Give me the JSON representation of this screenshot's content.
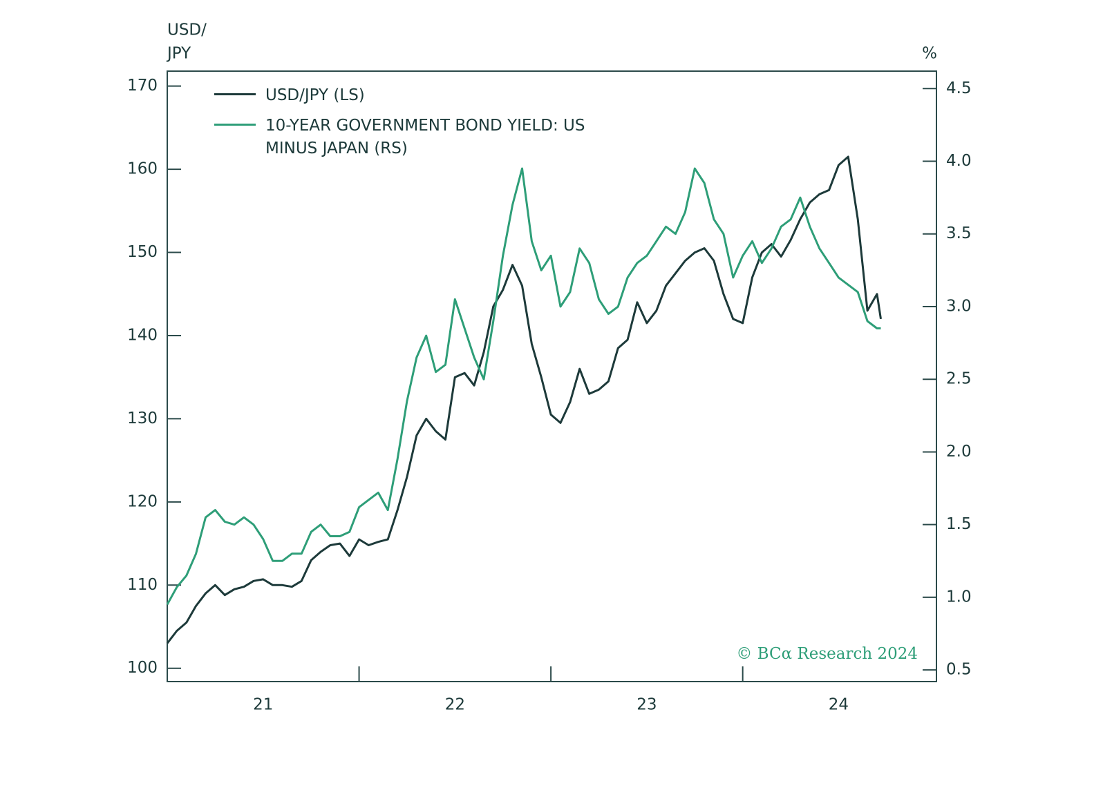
{
  "chart_data": {
    "type": "line",
    "ylabel": [
      "USD/",
      "JPY"
    ],
    "y2label": "%",
    "source": "© BCα Research 2024",
    "x": [
      2021.0,
      2021.05,
      2021.1,
      2021.15,
      2021.2,
      2021.25,
      2021.3,
      2021.35,
      2021.4,
      2021.45,
      2021.5,
      2021.55,
      2021.6,
      2021.65,
      2021.7,
      2021.75,
      2021.8,
      2021.85,
      2021.9,
      2021.95,
      2022.0,
      2022.05,
      2022.1,
      2022.15,
      2022.2,
      2022.25,
      2022.3,
      2022.35,
      2022.4,
      2022.45,
      2022.5,
      2022.55,
      2022.6,
      2022.65,
      2022.7,
      2022.75,
      2022.8,
      2022.85,
      2022.9,
      2022.95,
      2023.0,
      2023.05,
      2023.1,
      2023.15,
      2023.2,
      2023.25,
      2023.3,
      2023.35,
      2023.4,
      2023.45,
      2023.5,
      2023.55,
      2023.6,
      2023.65,
      2023.7,
      2023.75,
      2023.8,
      2023.85,
      2023.9,
      2023.95,
      2024.0,
      2024.05,
      2024.1,
      2024.15,
      2024.2,
      2024.25,
      2024.3,
      2024.35,
      2024.4,
      2024.45,
      2024.5,
      2024.55,
      2024.6,
      2024.65,
      2024.7,
      2024.72
    ],
    "series": [
      {
        "name": "USD/JPY (LS)",
        "color": "#1d3a3a",
        "axis": "y",
        "values": [
          103,
          104.5,
          105.5,
          107.5,
          109,
          110,
          108.8,
          109.5,
          109.8,
          110.5,
          110.7,
          110,
          110,
          109.8,
          110.5,
          113,
          114,
          114.8,
          115,
          113.5,
          115.5,
          114.8,
          115.2,
          115.5,
          119,
          123,
          128,
          130,
          128.5,
          127.5,
          135,
          135.5,
          134,
          138,
          143.5,
          145.5,
          148.5,
          146,
          139,
          135,
          130.5,
          129.5,
          132,
          136,
          133,
          133.5,
          134.5,
          138.5,
          139.5,
          144,
          141.5,
          143,
          146,
          147.5,
          149,
          150,
          150.5,
          149,
          145,
          142,
          141.5,
          147,
          150,
          151,
          149.5,
          151.5,
          154,
          156,
          157,
          157.5,
          160.5,
          161.5,
          154,
          143,
          145,
          142
        ]
      },
      {
        "name": "10-YEAR GOVERNMENT BOND YIELD: US MINUS JAPAN (RS)",
        "color": "#2e9e78",
        "axis": "y2",
        "values": [
          0.95,
          1.07,
          1.15,
          1.3,
          1.55,
          1.6,
          1.52,
          1.5,
          1.55,
          1.5,
          1.4,
          1.25,
          1.25,
          1.3,
          1.3,
          1.45,
          1.5,
          1.42,
          1.42,
          1.45,
          1.62,
          1.67,
          1.72,
          1.6,
          1.95,
          2.35,
          2.65,
          2.8,
          2.55,
          2.6,
          3.05,
          2.85,
          2.65,
          2.5,
          2.9,
          3.35,
          3.7,
          3.95,
          3.45,
          3.25,
          3.35,
          3.0,
          3.1,
          3.4,
          3.3,
          3.05,
          2.95,
          3.0,
          3.2,
          3.3,
          3.35,
          3.45,
          3.55,
          3.5,
          3.65,
          3.95,
          3.85,
          3.6,
          3.5,
          3.2,
          3.35,
          3.45,
          3.3,
          3.4,
          3.55,
          3.6,
          3.75,
          3.55,
          3.4,
          3.3,
          3.2,
          3.15,
          3.1,
          2.9,
          2.85,
          2.85
        ]
      }
    ],
    "xlim": [
      2021.0,
      2025.01
    ],
    "xticks": [
      {
        "value": 2021.5,
        "label": "21"
      },
      {
        "value": 2022.5,
        "label": "22"
      },
      {
        "value": 2023.5,
        "label": "23"
      },
      {
        "value": 2024.5,
        "label": "24"
      }
    ],
    "xtick_marks": [
      2022,
      2023,
      2024
    ],
    "ylim": [
      98.4,
      171.8
    ],
    "yticks": [
      100,
      110,
      120,
      130,
      140,
      150,
      160,
      170
    ],
    "y2lim": [
      0.42,
      4.62
    ],
    "y2ticks": [
      0.5,
      {
        "value": 1,
        "label": "1.0"
      },
      1.5,
      {
        "value": 2,
        "label": "2.0"
      },
      2.5,
      {
        "value": 3,
        "label": "3.0"
      },
      3.5,
      {
        "value": 4,
        "label": "4.0"
      },
      4.5
    ],
    "axis_color": "#2b4a4a",
    "legend": "upper left"
  }
}
